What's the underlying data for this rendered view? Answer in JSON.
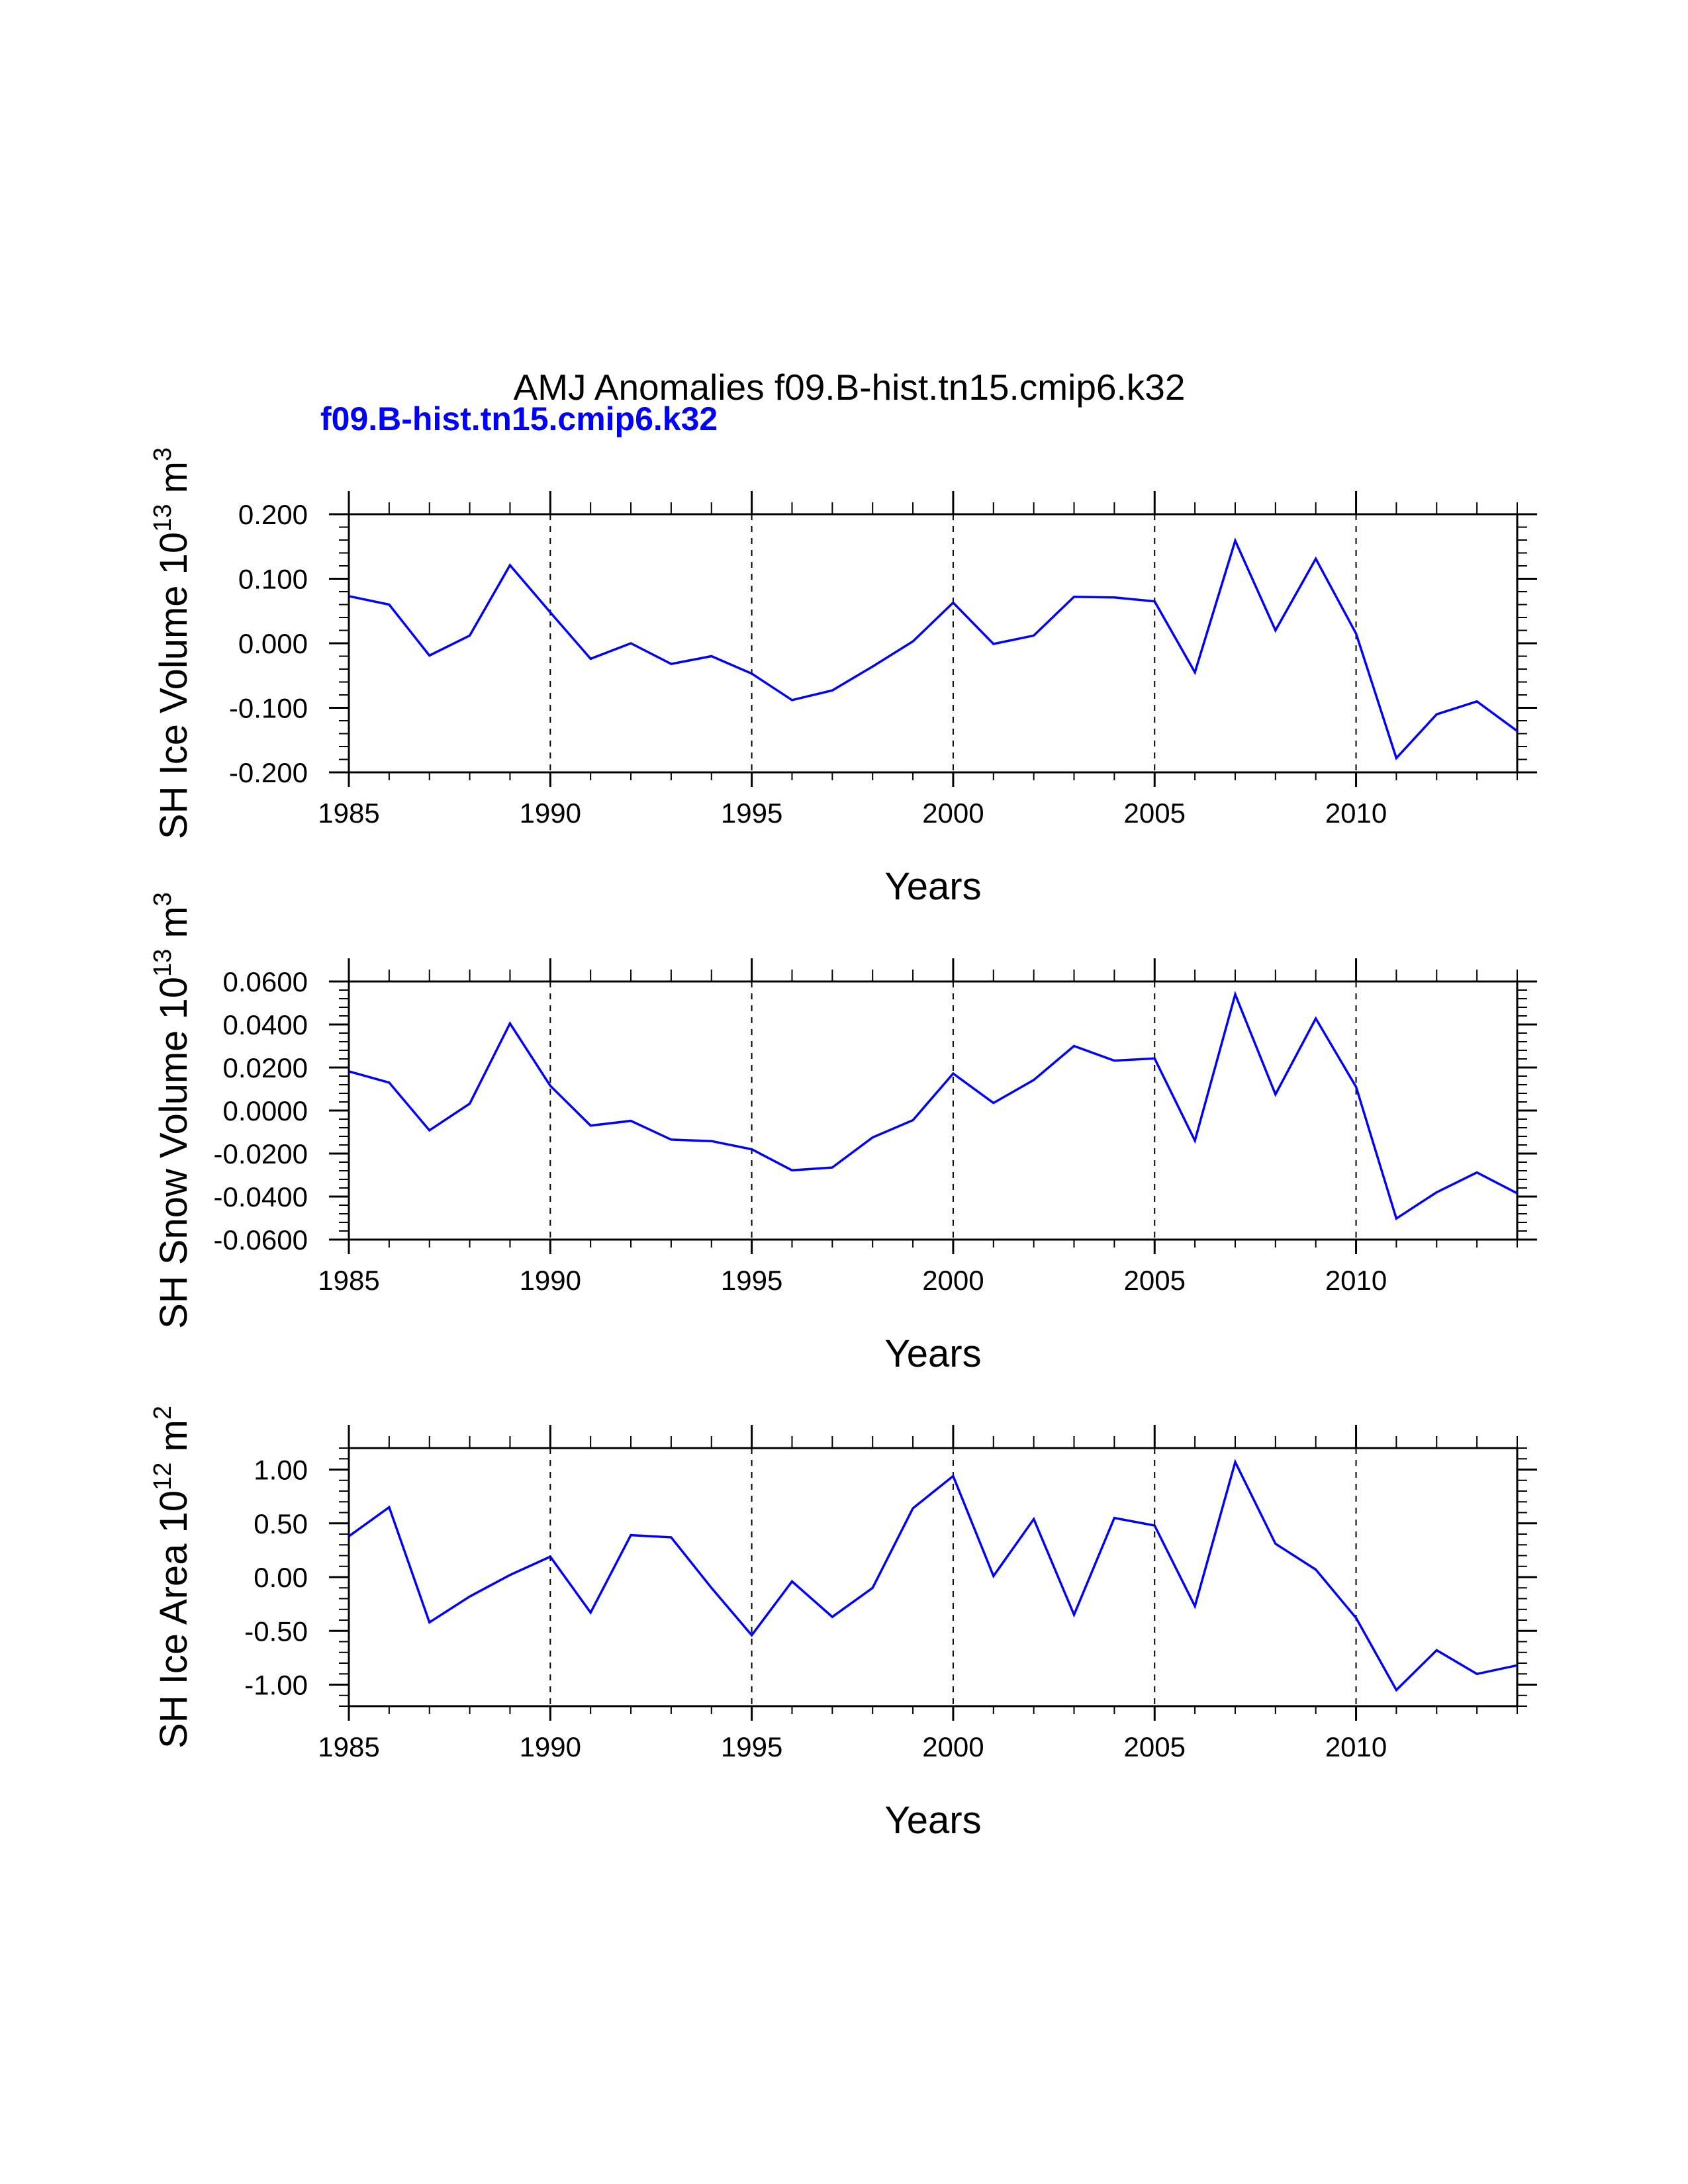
{
  "title": "AMJ Anomalies f09.B-hist.tn15.cmip6.k32",
  "subtitle": "f09.B-hist.tn15.cmip6.k32",
  "colors": {
    "series": "#0000ff",
    "subtitle": "#0000ff",
    "axis": "#000000"
  },
  "chart_data": [
    {
      "type": "line",
      "title": "",
      "xlabel": "Years",
      "ylabel_main": "SH Ice Volume 10",
      "ylabel_exp": "13",
      "ylabel_unit": " m",
      "ylabel_unit_exp": "3",
      "xlim": [
        1985,
        2014
      ],
      "ylim": [
        -0.2,
        0.2
      ],
      "xticks": [
        "1985",
        "1990",
        "1995",
        "2000",
        "2005",
        "2010"
      ],
      "xtick_values": [
        1985,
        1990,
        1995,
        2000,
        2005,
        2010
      ],
      "yticks": [
        "-0.200",
        "-0.100",
        "0.000",
        "0.100",
        "0.200"
      ],
      "ytick_values": [
        -0.2,
        -0.1,
        0.0,
        0.1,
        0.2
      ],
      "x": [
        1985,
        1986,
        1987,
        1988,
        1989,
        1990,
        1991,
        1992,
        1993,
        1994,
        1995,
        1996,
        1997,
        1998,
        1999,
        2000,
        2001,
        2002,
        2003,
        2004,
        2005,
        2006,
        2007,
        2008,
        2009,
        2010,
        2011,
        2012,
        2013,
        2014
      ],
      "series": [
        {
          "name": "f09.B-hist.tn15.cmip6.k32",
          "values": [
            0.073,
            0.06,
            -0.019,
            0.012,
            0.121,
            0.048,
            -0.024,
            0.0,
            -0.032,
            -0.02,
            -0.047,
            -0.088,
            -0.073,
            -0.036,
            0.003,
            0.063,
            -0.001,
            0.012,
            0.072,
            0.071,
            0.065,
            -0.045,
            0.159,
            0.02,
            0.131,
            0.015,
            -0.178,
            -0.11,
            -0.09,
            -0.136
          ]
        }
      ]
    },
    {
      "type": "line",
      "title": "",
      "xlabel": "Years",
      "ylabel_main": "SH Snow Volume 10",
      "ylabel_exp": "13",
      "ylabel_unit": " m",
      "ylabel_unit_exp": "3",
      "xlim": [
        1985,
        2014
      ],
      "ylim": [
        -0.06,
        0.06
      ],
      "xticks": [
        "1985",
        "1990",
        "1995",
        "2000",
        "2005",
        "2010"
      ],
      "xtick_values": [
        1985,
        1990,
        1995,
        2000,
        2005,
        2010
      ],
      "yticks": [
        "-0.0600",
        "-0.0400",
        "-0.0200",
        "0.0000",
        "0.0200",
        "0.0400",
        "0.0600"
      ],
      "ytick_values": [
        -0.06,
        -0.04,
        -0.02,
        0.0,
        0.02,
        0.04,
        0.06
      ],
      "x": [
        1985,
        1986,
        1987,
        1988,
        1989,
        1990,
        1991,
        1992,
        1993,
        1994,
        1995,
        1996,
        1997,
        1998,
        1999,
        2000,
        2001,
        2002,
        2003,
        2004,
        2005,
        2006,
        2007,
        2008,
        2009,
        2010,
        2011,
        2012,
        2013,
        2014
      ],
      "series": [
        {
          "name": "f09.B-hist.tn15.cmip6.k32",
          "values": [
            0.0182,
            0.013,
            -0.0092,
            0.0032,
            0.0405,
            0.0115,
            -0.007,
            -0.0048,
            -0.0135,
            -0.0142,
            -0.018,
            -0.0278,
            -0.0265,
            -0.0125,
            -0.0045,
            0.0172,
            0.0035,
            0.0142,
            0.03,
            0.0232,
            0.0242,
            -0.014,
            0.054,
            0.0075,
            0.0428,
            0.011,
            -0.0502,
            -0.038,
            -0.0288,
            -0.0385
          ]
        }
      ]
    },
    {
      "type": "line",
      "title": "",
      "xlabel": "Years",
      "ylabel_main": "SH Ice Area 10",
      "ylabel_exp": "12",
      "ylabel_unit": " m",
      "ylabel_unit_exp": "2",
      "xlim": [
        1985,
        2014
      ],
      "ylim": [
        -1.2,
        1.2
      ],
      "xticks": [
        "1985",
        "1990",
        "1995",
        "2000",
        "2005",
        "2010"
      ],
      "xtick_values": [
        1985,
        1990,
        1995,
        2000,
        2005,
        2010
      ],
      "yticks": [
        "-1.00",
        "-0.50",
        "0.00",
        "0.50",
        "1.00"
      ],
      "ytick_values": [
        -1.0,
        -0.5,
        0.0,
        0.5,
        1.0
      ],
      "x": [
        1985,
        1986,
        1987,
        1988,
        1989,
        1990,
        1991,
        1992,
        1993,
        1994,
        1995,
        1996,
        1997,
        1998,
        1999,
        2000,
        2001,
        2002,
        2003,
        2004,
        2005,
        2006,
        2007,
        2008,
        2009,
        2010,
        2011,
        2012,
        2013,
        2014
      ],
      "series": [
        {
          "name": "f09.B-hist.tn15.cmip6.k32",
          "values": [
            0.38,
            0.65,
            -0.42,
            -0.18,
            0.02,
            0.19,
            -0.33,
            0.39,
            0.37,
            -0.1,
            -0.54,
            -0.04,
            -0.37,
            -0.1,
            0.64,
            0.94,
            0.01,
            0.54,
            -0.35,
            0.55,
            0.48,
            -0.27,
            1.07,
            0.31,
            0.07,
            -0.38,
            -1.05,
            -0.68,
            -0.9,
            -0.82
          ]
        }
      ]
    }
  ]
}
